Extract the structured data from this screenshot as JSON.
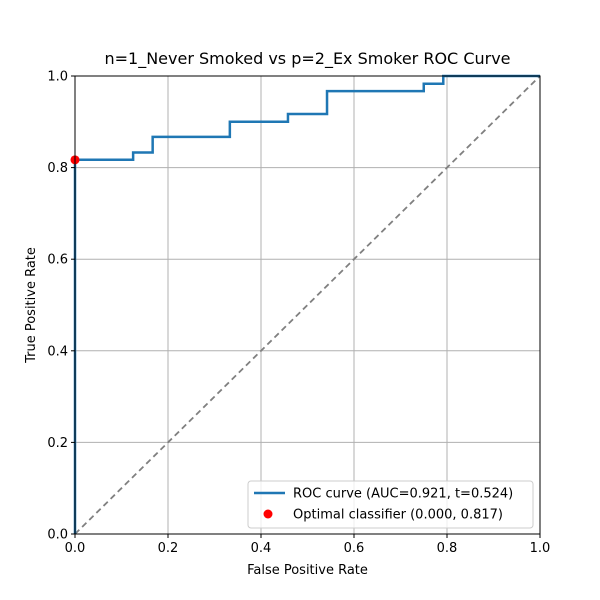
{
  "chart_data": {
    "type": "line",
    "title": "n=1_Never Smoked vs p=2_Ex Smoker ROC Curve",
    "xlabel": "False Positive Rate",
    "ylabel": "True Positive Rate",
    "xlim": [
      0.0,
      1.0
    ],
    "ylim": [
      0.0,
      1.0
    ],
    "grid": true,
    "legend_position": "lower-right",
    "x_ticks": [
      0.0,
      0.2,
      0.4,
      0.6,
      0.8,
      1.0
    ],
    "x_tick_labels": [
      "0.0",
      "0.2",
      "0.4",
      "0.6",
      "0.8",
      "1.0"
    ],
    "y_ticks": [
      0.0,
      0.2,
      0.4,
      0.6,
      0.8,
      1.0
    ],
    "y_tick_labels": [
      "0.0",
      "0.2",
      "0.4",
      "0.6",
      "0.8",
      "1.0"
    ],
    "series": [
      {
        "name": "ROC curve (AUC=0.921, t=0.524)",
        "kind": "step",
        "color": "#1f77b4",
        "x": [
          0.0,
          0.0,
          0.125,
          0.125,
          0.167,
          0.167,
          0.333,
          0.333,
          0.458,
          0.458,
          0.542,
          0.542,
          0.75,
          0.75,
          0.792,
          0.792,
          1.0
        ],
        "y": [
          0.0,
          0.817,
          0.817,
          0.833,
          0.833,
          0.867,
          0.867,
          0.9,
          0.9,
          0.917,
          0.917,
          0.967,
          0.967,
          0.983,
          0.983,
          1.0,
          1.0
        ]
      },
      {
        "name": "Optimal classifier (0.000, 0.817)",
        "kind": "point",
        "color": "#ff0000",
        "x": [
          0.0
        ],
        "y": [
          0.817
        ]
      },
      {
        "kind": "reference-diagonal",
        "color": "#808080",
        "x": [
          0.0,
          1.0
        ],
        "y": [
          0.0,
          1.0
        ]
      }
    ],
    "legend": [
      {
        "label": "ROC curve (AUC=0.921, t=0.524)",
        "marker": "line",
        "color": "#1f77b4"
      },
      {
        "label": "Optimal classifier (0.000, 0.817)",
        "marker": "dot",
        "color": "#ff0000"
      }
    ]
  }
}
